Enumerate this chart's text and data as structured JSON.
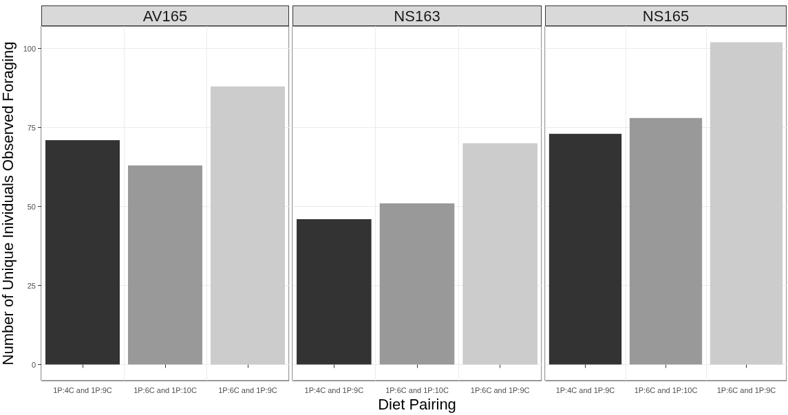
{
  "chart_data": [
    {
      "type": "bar",
      "title": "AV165",
      "ylabel": "Number of Unique Inividuals Observed Foraging",
      "categories": [
        "1P:4C and 1P:9C",
        "1P:6C and 1P:10C",
        "1P:6C and 1P:9C"
      ],
      "values": [
        71,
        63,
        88
      ],
      "colors": [
        "#333333",
        "#999999",
        "#cccccc"
      ],
      "ylim": [
        -5.1,
        107.1
      ],
      "yticks": [
        0,
        25,
        50,
        75,
        100
      ],
      "grid": true
    },
    {
      "type": "bar",
      "title": "NS163",
      "xlabel": "Diet Pairing",
      "categories": [
        "1P:4C and 1P:9C",
        "1P:6C and 1P:10C",
        "1P:6C and 1P:9C"
      ],
      "values": [
        46,
        51,
        70
      ],
      "colors": [
        "#333333",
        "#999999",
        "#cccccc"
      ],
      "ylim": [
        -5.1,
        107.1
      ],
      "yticks": [
        0,
        25,
        50,
        75,
        100
      ],
      "grid": true,
      "tick_labels": "x"
    },
    {
      "type": "bar",
      "title": "NS165",
      "categories": [
        "1P:4C and 1P:9C",
        "1P:6C and 1P:10C",
        "1P:6C and 1P:9C"
      ],
      "values": [
        73,
        78,
        102
      ],
      "colors": [
        "#333333",
        "#999999",
        "#cccccc"
      ],
      "ylim": [
        -5.1,
        107.1
      ],
      "yticks": [
        0,
        25,
        50,
        75,
        100
      ],
      "grid": true,
      "tick_labels": "x"
    }
  ]
}
